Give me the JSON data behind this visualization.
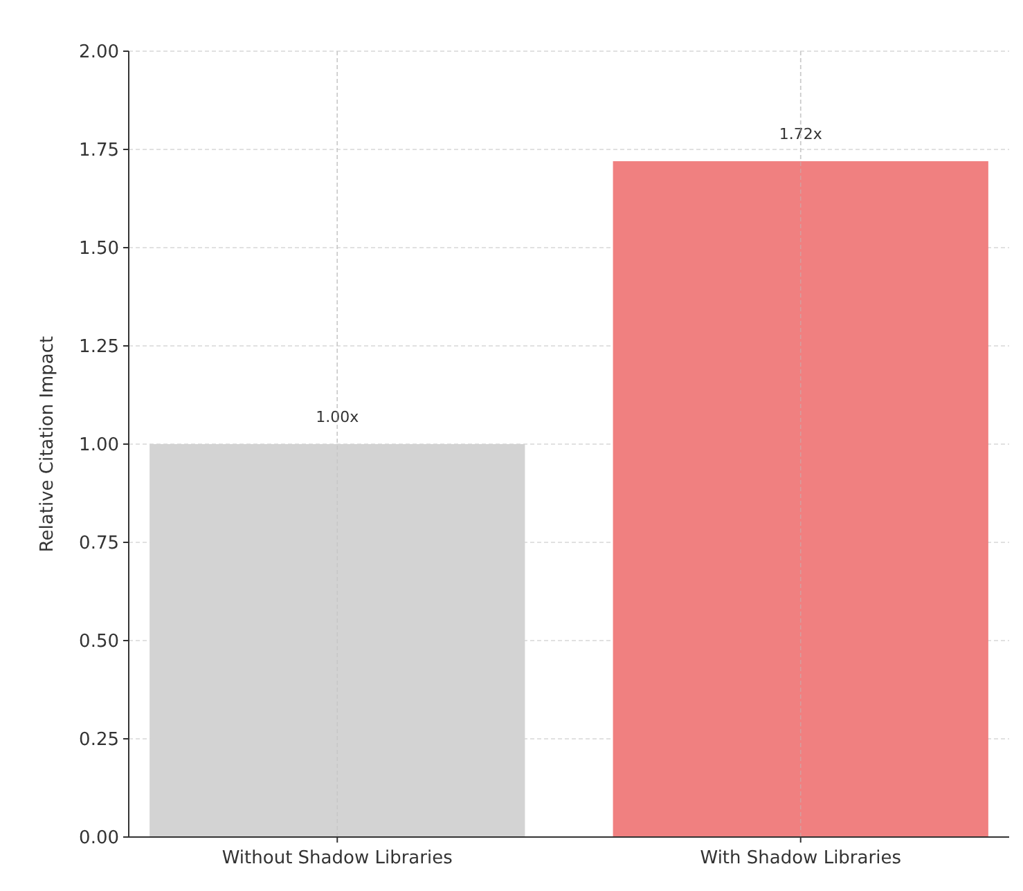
{
  "chart_data": {
    "type": "bar",
    "ylabel": "Relative Citation Impact",
    "categories": [
      "Without Shadow Libraries",
      "With Shadow Libraries"
    ],
    "values": [
      1.0,
      1.72
    ],
    "colors": [
      "#d3d3d3",
      "#f08080"
    ],
    "value_labels": [
      "1.00x",
      "1.72x"
    ],
    "ylim": [
      0,
      2
    ],
    "yticks": [
      {
        "value": 0,
        "label": "0.00"
      },
      {
        "value": 0.25,
        "label": "0.25"
      },
      {
        "value": 0.5,
        "label": "0.50"
      },
      {
        "value": 0.75,
        "label": "0.75"
      },
      {
        "value": 1,
        "label": "1.00"
      },
      {
        "value": 1.25,
        "label": "1.25"
      },
      {
        "value": 1.5,
        "label": "1.50"
      },
      {
        "value": 1.75,
        "label": "1.75"
      },
      {
        "value": 2,
        "label": "2.00"
      }
    ],
    "grid": true
  }
}
